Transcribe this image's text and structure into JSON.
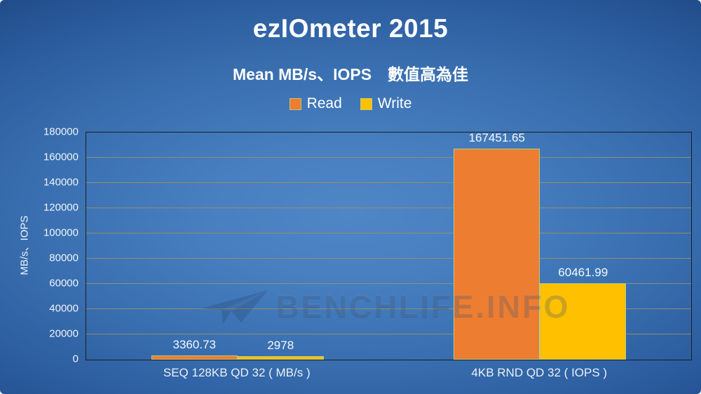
{
  "chart": {
    "title": "ezIOmeter 2015",
    "subtitle": "Mean MB/s、IOPS　數值高為佳",
    "ylabel": "MB/s、IOPS"
  },
  "watermark": {
    "text": "BENCHLIFE.INFO",
    "icon": "paper-plane-icon"
  },
  "colors": {
    "read": "#ed7d31",
    "write": "#ffc000",
    "gridline": "#968f6e",
    "plot_border": "#1d1d1d",
    "bar_border": "#b7cc80",
    "background_center": "#4f86c6",
    "background_edge": "#163260",
    "text": "#ffffff"
  },
  "chart_data": {
    "type": "bar",
    "title": "ezIOmeter 2015",
    "subtitle": "Mean MB/s、IOPS　數值高為佳",
    "xlabel": "",
    "ylabel": "MB/s、IOPS",
    "ylim": [
      0,
      180000
    ],
    "ytick_step": 20000,
    "grid": true,
    "legend_position": "top-center",
    "categories": [
      "SEQ 128KB QD 32 ( MB/s )",
      "4KB RND QD 32 ( IOPS )"
    ],
    "series": [
      {
        "name": "Read",
        "color": "#ed7d31",
        "values": [
          3360.73,
          167451.65
        ],
        "value_labels": [
          "3360.73",
          "167451.65"
        ]
      },
      {
        "name": "Write",
        "color": "#ffc000",
        "values": [
          2978,
          60461.99
        ],
        "value_labels": [
          "2978",
          "60461.99"
        ]
      }
    ]
  }
}
